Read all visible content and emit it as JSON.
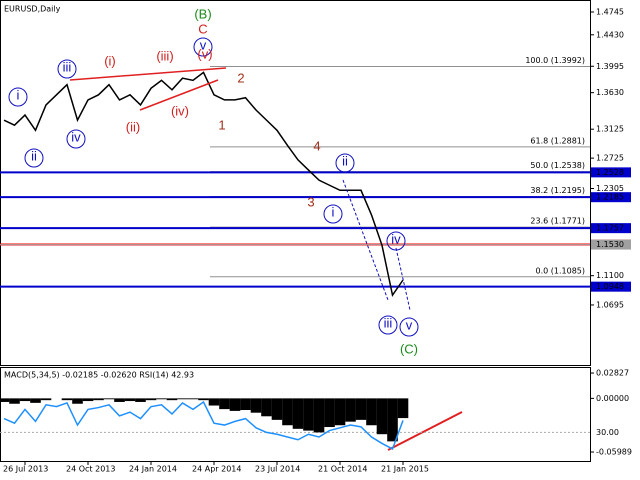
{
  "chart_data": [
    {
      "type": "line",
      "title": "EURUSD,Daily",
      "categories": [
        null,
        null,
        "26 Jul 2013",
        null,
        null,
        null,
        null,
        null,
        "24 Oct 2013",
        null,
        null,
        null,
        null,
        null,
        "24 Jan 2014",
        null,
        null,
        null,
        null,
        null,
        "24 Apr 2014",
        null,
        null,
        null,
        null,
        null,
        "23 Jul 2014",
        null,
        null,
        null,
        null,
        null,
        "21 Oct 2014",
        null,
        null,
        null,
        null,
        null,
        "21 Jan 2015"
      ],
      "values": [
        1.325,
        1.318,
        1.332,
        1.311,
        1.346,
        1.36,
        1.374,
        1.325,
        1.353,
        1.36,
        1.374,
        1.353,
        1.36,
        1.346,
        1.369,
        1.38,
        1.367,
        1.383,
        1.38,
        1.391,
        1.36,
        1.353,
        1.353,
        1.356,
        1.339,
        1.325,
        1.311,
        1.29,
        1.27,
        1.256,
        1.242,
        1.235,
        1.228,
        1.228,
        1.228,
        1.194,
        1.152,
        1.083,
        1.104
      ],
      "color": "#000000",
      "ylim": [
        0.9865,
        1.4911
      ],
      "yticks": [
        1.4745,
        {
          "value": 1.443,
          "label": "1.4430"
        },
        1.3995,
        {
          "value": 1.363,
          "label": "1.3630"
        },
        1.3125,
        1.2725,
        1.2305,
        {
          "value": 1.11,
          "label": "1.1100"
        },
        1.0695
      ],
      "levels": [
        {
          "value": 1.2528,
          "color": "#0000cc"
        },
        {
          "value": 1.2185,
          "color": "#0000cc"
        },
        {
          "value": 1.1757,
          "color": "#0000cc"
        },
        {
          "value": 1.1531,
          "color": "#ff0000"
        },
        {
          "value": 1.153,
          "label": "1.1530",
          "color": "#a0a0a0"
        },
        {
          "value": 1.0948,
          "color": "#0000cc"
        }
      ],
      "fibonacci": [
        {
          "value": 1.3992,
          "label": "100.0 (1.3992)"
        },
        {
          "value": 1.2881,
          "label": "61.8 (1.2881)"
        },
        {
          "value": 1.2538,
          "label": "50.0 (1.2538)"
        },
        {
          "value": 1.2195,
          "label": "38.2 (1.2195)"
        },
        {
          "value": 1.1771,
          "label": "23.6 (1.1771)"
        },
        {
          "value": 1.1085,
          "label": "0.0 (1.1085)"
        }
      ],
      "wave_labels": [
        "(B)",
        "C",
        "v",
        "(v)",
        "i",
        "ii",
        "iii",
        "iv",
        "(i)",
        "(ii)",
        "(iii)",
        "(iv)",
        "2",
        "1",
        "4",
        "3",
        "ii",
        "i",
        "iv",
        "iii",
        "v",
        "(C)"
      ]
    },
    {
      "type": "bar",
      "title": "MACD(5,34,5) -0.02185 -0.02620 RSI(14) 42.93",
      "ylim": [
        -0.0688,
        0.0339
      ],
      "yticks": [
        0.02827,
        {
          "value": 0,
          "label": "0.00000"
        },
        -0.05989
      ],
      "y2lim": [
        0,
        100
      ],
      "y2ticks": [
        {
          "value": 30,
          "label": "30.00"
        }
      ],
      "series": [
        {
          "color": "#000000",
          "values": [
            -0.004,
            -0.006,
            -0.003,
            -0.005,
            -0.002,
            0.0,
            -0.002,
            -0.006,
            -0.003,
            -0.002,
            -0.001,
            -0.004,
            -0.003,
            -0.004,
            -0.002,
            -0.001,
            -0.002,
            -0.001,
            -0.001,
            -0.002,
            -0.008,
            -0.012,
            -0.014,
            -0.013,
            -0.016,
            -0.02,
            -0.024,
            -0.03,
            -0.034,
            -0.036,
            -0.038,
            -0.032,
            -0.03,
            -0.026,
            -0.024,
            -0.03,
            -0.04,
            -0.048,
            -0.022
          ]
        },
        {
          "color": "#1e90ff",
          "axis": "y2",
          "values": [
            45,
            40,
            55,
            42,
            60,
            58,
            62,
            38,
            55,
            57,
            60,
            48,
            52,
            45,
            58,
            60,
            50,
            62,
            55,
            63,
            40,
            38,
            42,
            45,
            35,
            30,
            28,
            25,
            22,
            28,
            25,
            32,
            35,
            38,
            36,
            25,
            18,
            12,
            43
          ]
        }
      ]
    }
  ]
}
